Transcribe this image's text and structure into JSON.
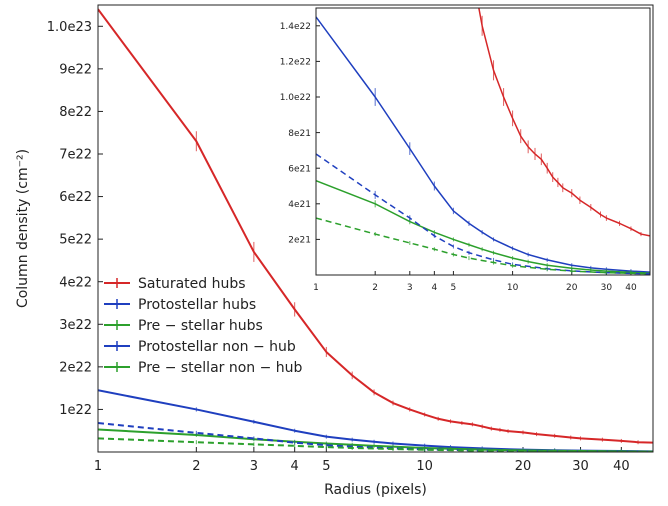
{
  "chart_data": [
    {
      "type": "line",
      "xlabel": "Radius (pixels)",
      "ylabel": "Column density (cm⁻²)",
      "x_scale": "log",
      "xlim": [
        1,
        50
      ],
      "ylim": [
        0,
        1.05e+23
      ],
      "x_ticks": [
        1,
        2,
        3,
        4,
        5,
        10,
        20,
        30,
        40
      ],
      "x_tick_labels": [
        "1",
        "2",
        "3",
        "4",
        "5",
        "10",
        "20",
        "30",
        "40"
      ],
      "y_ticks": [
        1e+22,
        2e+22,
        3e+22,
        4e+22,
        5e+22,
        6e+22,
        7e+22,
        8e+22,
        9e+22,
        1e+23
      ],
      "y_tick_labels": [
        "1e22",
        "2e22",
        "3e22",
        "4e22",
        "5e22",
        "6e22",
        "7e22",
        "8e22",
        "9e22",
        "1.0e23"
      ],
      "legend_position": "lower-left",
      "series": [
        {
          "name": "Saturated hubs",
          "color": "#d62728",
          "style": "solid",
          "x": [
            1,
            2,
            3,
            4,
            5,
            6,
            7,
            8,
            9,
            10,
            11,
            12,
            13,
            14,
            15,
            16,
            17,
            18,
            20,
            22,
            25,
            28,
            30,
            35,
            40,
            45,
            50
          ],
          "y": [
            1.04e+23,
            7.3e+22,
            4.7e+22,
            3.35e+22,
            2.35e+22,
            1.8e+22,
            1.4e+22,
            1.15e+22,
            1e+22,
            8.8e+21,
            7.8e+21,
            7.2e+21,
            6.8e+21,
            6.5e+21,
            6e+21,
            5.5e+21,
            5.2e+21,
            4.9e+21,
            4.6e+21,
            4.2e+21,
            3.8e+21,
            3.4e+21,
            3.2e+21,
            2.9e+21,
            2.6e+21,
            2.3e+21,
            2.2e+21
          ]
        },
        {
          "name": "Protostellar hubs",
          "color": "#1f3fbf",
          "style": "solid",
          "x": [
            1,
            2,
            3,
            4,
            5,
            6,
            7,
            8,
            10,
            12,
            15,
            20,
            25,
            30,
            40,
            50
          ],
          "y": [
            1.45e+22,
            1e+22,
            7.1e+21,
            5e+21,
            3.6e+21,
            2.9e+21,
            2.4e+21,
            2e+21,
            1.5e+21,
            1.15e+21,
            8.5e+20,
            5.5e+20,
            4e+20,
            3.2e+20,
            2.2e+20,
            1.6e+20
          ]
        },
        {
          "name": "Pre − stellar hubs",
          "color": "#2ca02c",
          "style": "solid",
          "x": [
            1,
            2,
            3,
            4,
            5,
            6,
            7,
            8,
            10,
            12,
            15,
            20,
            25,
            30,
            40,
            50
          ],
          "y": [
            5.3e+21,
            4e+21,
            3e+21,
            2.4e+21,
            2e+21,
            1.7e+21,
            1.45e+21,
            1.25e+21,
            9.5e+20,
            7.5e+20,
            5.5e+20,
            3.8e+20,
            2.8e+20,
            2.2e+20,
            1.5e+20,
            1e+20
          ]
        },
        {
          "name": "Protostellar non − hub",
          "color": "#1f3fbf",
          "style": "dashed",
          "x": [
            1,
            2,
            3,
            4,
            5,
            6,
            8,
            10,
            15,
            20,
            30,
            50
          ],
          "y": [
            6.8e+21,
            4.5e+21,
            3.2e+21,
            2.2e+21,
            1.6e+21,
            1.25e+21,
            8.5e+20,
            6e+20,
            3.5e+20,
            2.3e+20,
            1.3e+20,
            6e+19
          ]
        },
        {
          "name": "Pre − stellar non − hub",
          "color": "#2ca02c",
          "style": "dashed",
          "x": [
            1,
            2,
            3,
            4,
            5,
            6,
            8,
            10,
            15,
            20,
            30,
            50
          ],
          "y": [
            3.2e+21,
            2.3e+21,
            1.8e+21,
            1.45e+21,
            1.15e+21,
            9.5e+20,
            7e+20,
            5.2e+20,
            3.2e+20,
            2.2e+20,
            1.3e+20,
            7e+19
          ]
        }
      ]
    },
    {
      "type": "line",
      "role": "inset",
      "x_scale": "log",
      "xlim": [
        1,
        50
      ],
      "ylim": [
        0,
        1.5e+22
      ],
      "x_ticks": [
        1,
        2,
        3,
        4,
        5,
        10,
        20,
        30,
        40
      ],
      "x_tick_labels": [
        "1",
        "2",
        "3",
        "4",
        "5",
        "10",
        "20",
        "30",
        "40"
      ],
      "y_ticks": [
        2e+21,
        4e+21,
        6e+21,
        8e+21,
        1e+22,
        1.2e+22,
        1.4e+22
      ],
      "y_tick_labels": [
        "2e21",
        "4e21",
        "6e21",
        "8e21",
        "1.0e22",
        "1.2e22",
        "1.4e22"
      ]
    }
  ]
}
